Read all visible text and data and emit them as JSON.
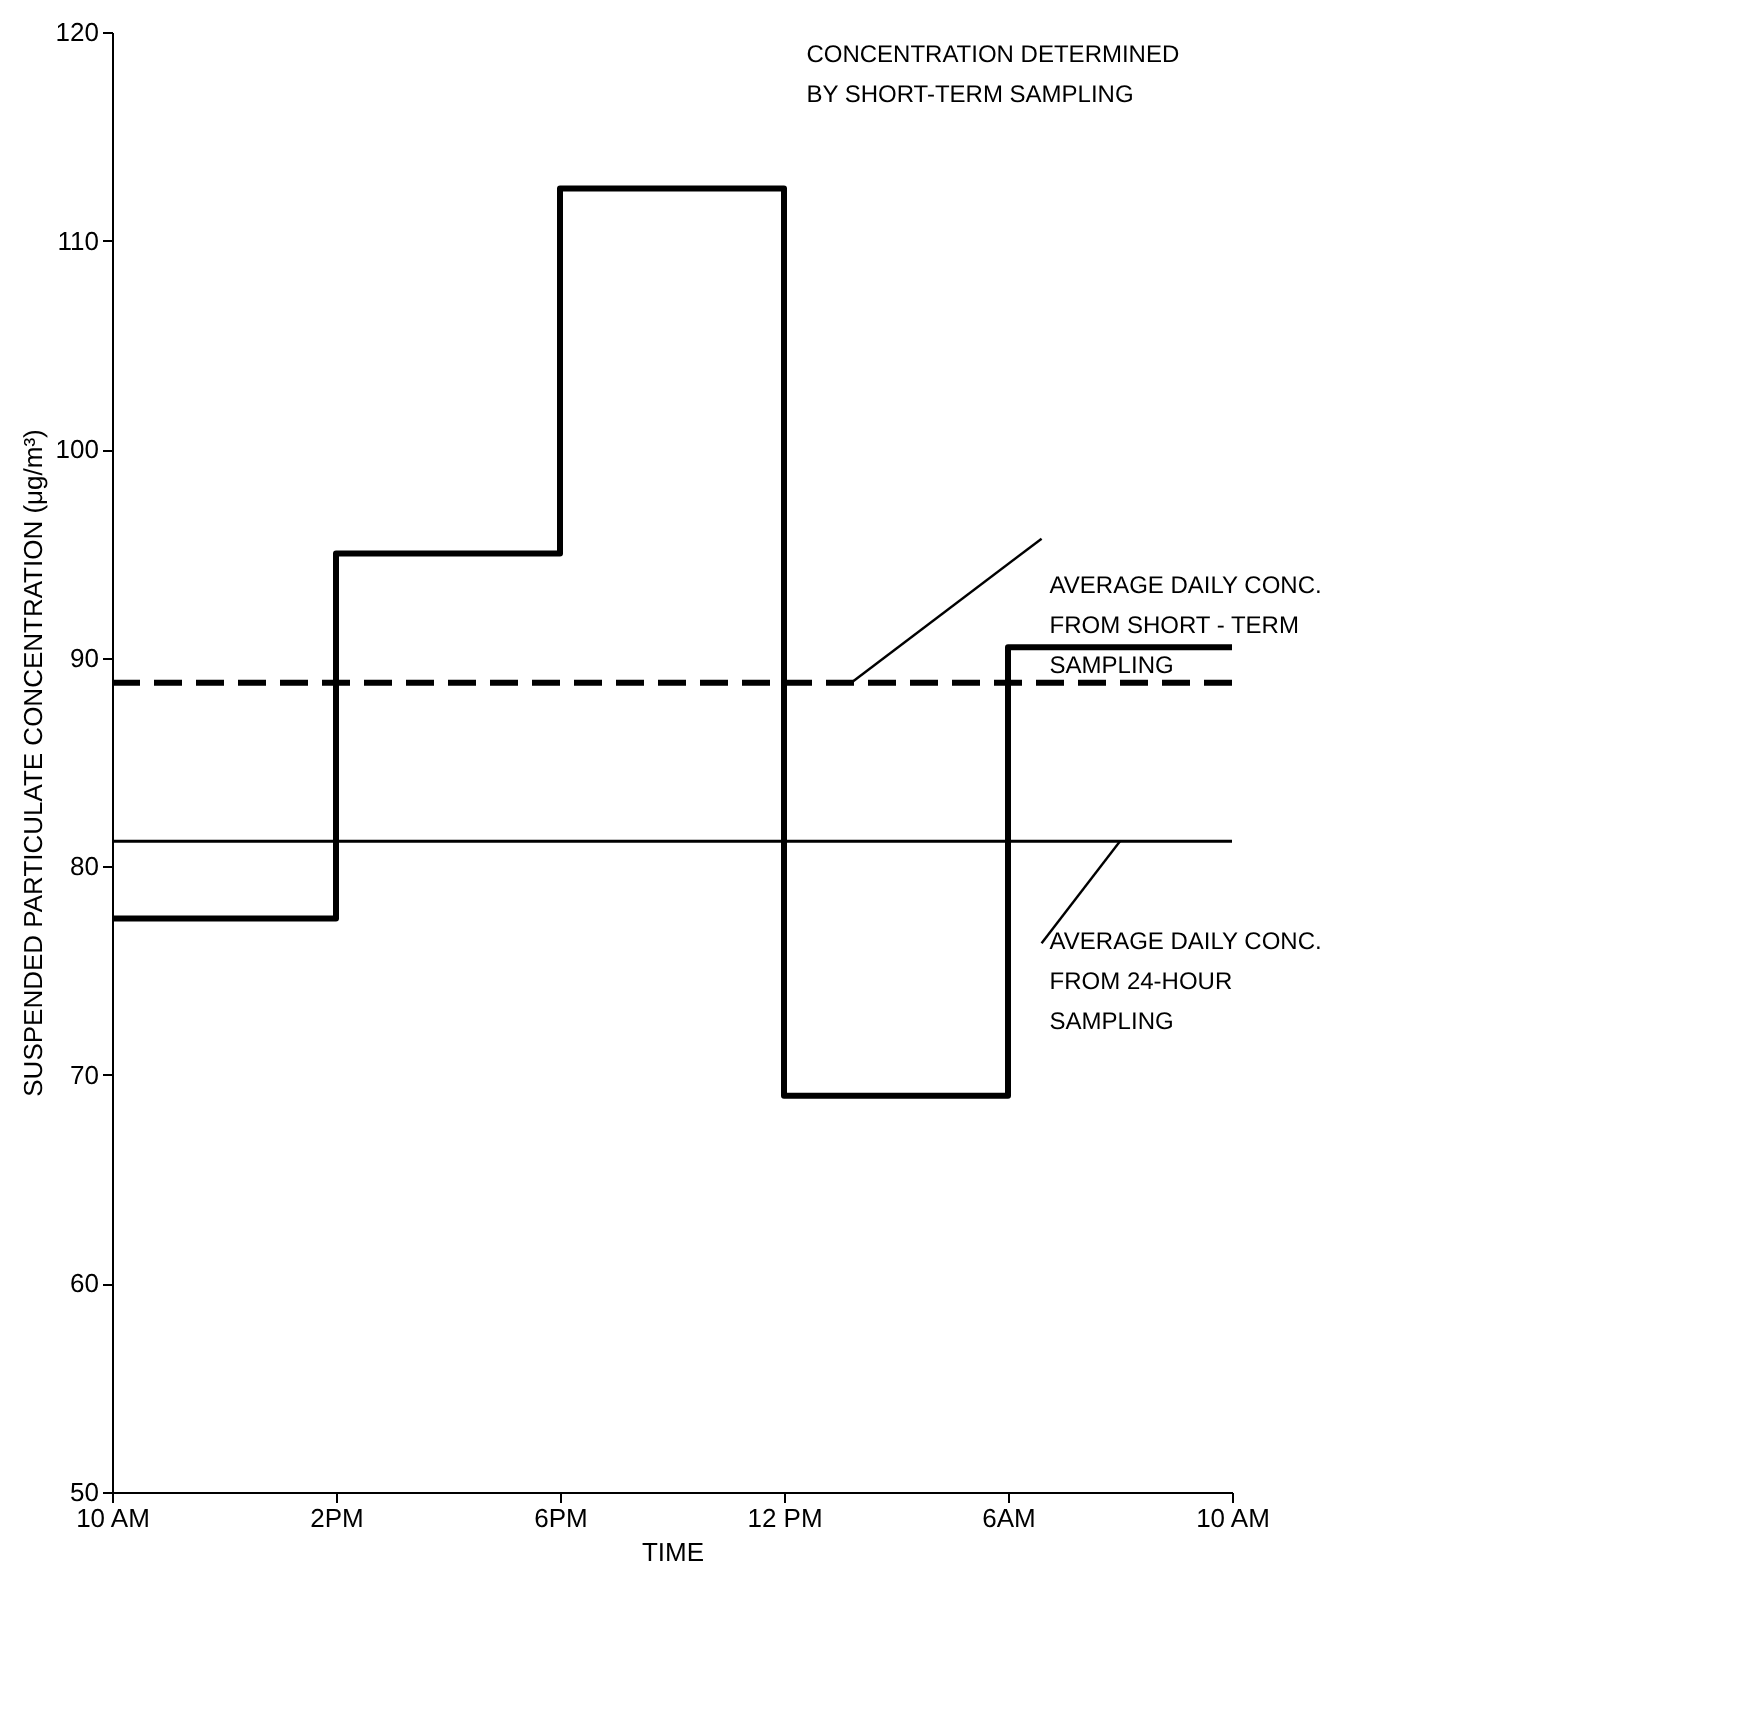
{
  "chart_data": {
    "type": "step",
    "xlabel": "TIME",
    "ylabel": "SUSPENDED PARTICULATE CONCENTRATION (μg/m³)",
    "categories": [
      "10 AM",
      "2PM",
      "6PM",
      "12 PM",
      "6AM",
      "10 AM"
    ],
    "series": [
      {
        "color": "#000000",
        "values": [
          77.5,
          95,
          112.5,
          69,
          90.5,
          90.5
        ]
      }
    ],
    "ylim": [
      50,
      120
    ],
    "yticks": [
      50,
      60,
      70,
      80,
      90,
      100,
      110,
      120
    ],
    "ref_lines": [
      {
        "axis": "y",
        "value": 88.8,
        "color": "#000000",
        "line_style": "dashed",
        "label": "AVERAGE DAILY CONC.\nFROM SHORT - TERM\nSAMPLING"
      },
      {
        "axis": "y",
        "value": 81.2,
        "color": "#000000",
        "line_style": "solid",
        "label": "AVERAGE DAILY CONC.\nFROM 24-HOUR\nSAMPLING"
      }
    ],
    "annotations": [
      "CONCENTRATION DETERMINED\nBY SHORT-TERM SAMPLING"
    ],
    "grid": false,
    "marker": "none",
    "line_style": "solid"
  }
}
